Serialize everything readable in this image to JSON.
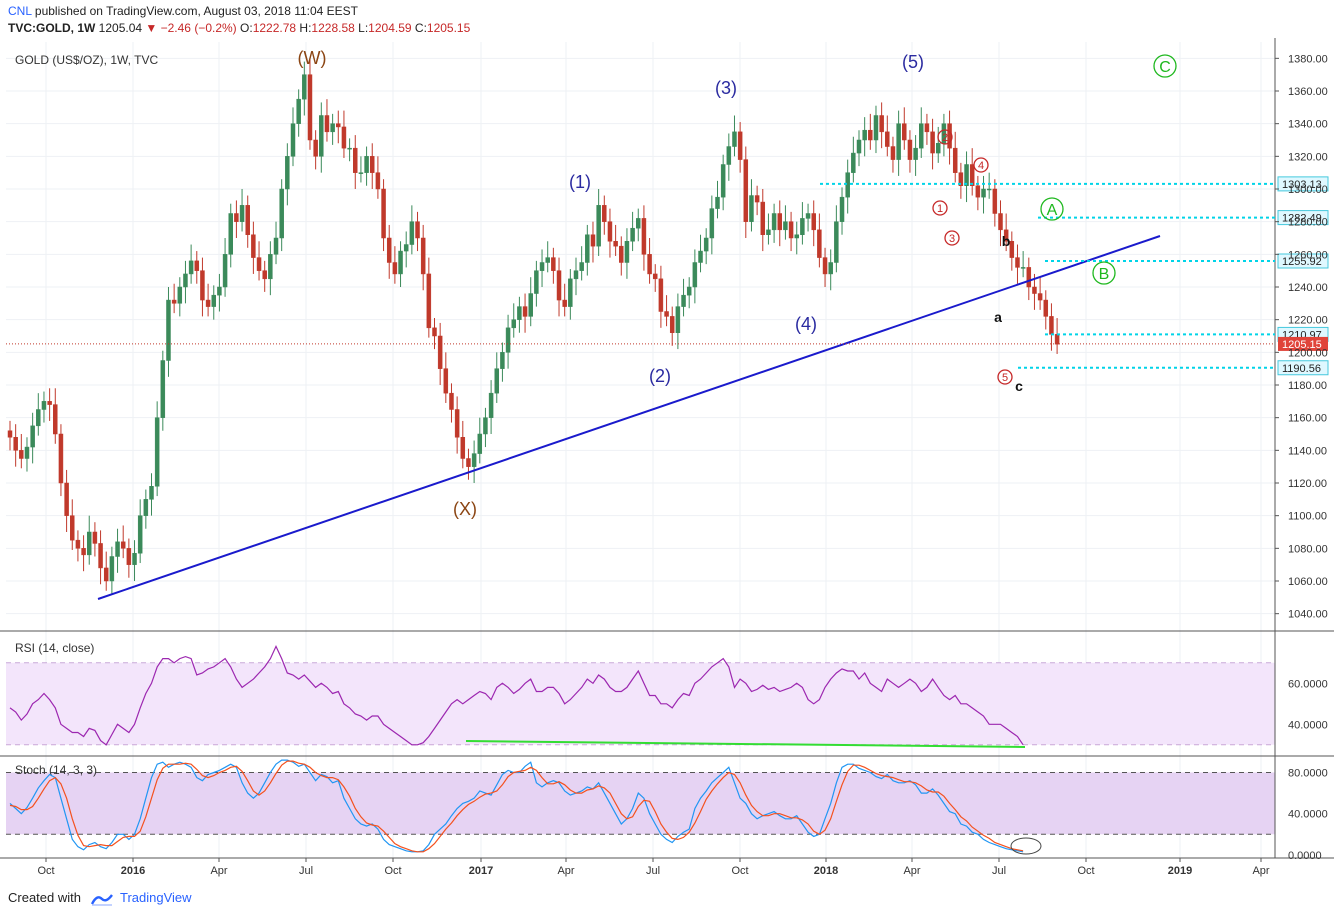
{
  "header": {
    "user": "CNL",
    "published_text": "published on TradingView.com, August 03, 2018 11:04 EEST",
    "symbol": "TVC:GOLD, 1W",
    "last": "1205.04",
    "change": "▼ −2.46 (−0.2%)",
    "ohlc": [
      {
        "label": "O:",
        "value": "1222.78"
      },
      {
        "label": "H:",
        "value": "1228.58"
      },
      {
        "label": "L:",
        "value": "1204.59"
      },
      {
        "label": "C:",
        "value": "1205.15"
      }
    ]
  },
  "footer": {
    "created_with": "Created with",
    "brand": "TradingView"
  },
  "colors": {
    "up_candle": "#3b8a5a",
    "down_candle": "#c0392b",
    "trendline": "#1a1acc",
    "wave_primary": "#2a2aa0",
    "wave_minor": "#c62828",
    "wave_intermediate": "#8b4513",
    "wave_abc_green": "#1fb81f",
    "level_line": "#00d4e8",
    "rsi_line": "#9c27b0",
    "stoch_k": "#2196f3",
    "stoch_d": "#f4511e"
  },
  "chart_data": [
    {
      "type": "candlestick",
      "title": "GOLD (US$/OZ), 1W, TVC",
      "ylim": [
        1030,
        1390
      ],
      "y_ticks": [
        1040,
        1060,
        1080,
        1100,
        1120,
        1140,
        1160,
        1180,
        1200,
        1220,
        1240,
        1260,
        1280,
        1300,
        1320,
        1340,
        1360,
        1380
      ],
      "x_ticks": [
        "Oct",
        "2016",
        "Apr",
        "Jul",
        "Oct",
        "2017",
        "Apr",
        "Jul",
        "Oct",
        "2018",
        "Apr",
        "Jul",
        "Oct",
        "2019",
        "Apr"
      ],
      "price_levels": [
        {
          "label": "1303.13",
          "value": 1303.13,
          "style": "level"
        },
        {
          "label": "1282.49",
          "value": 1282.49,
          "style": "level"
        },
        {
          "label": "1255.92",
          "value": 1255.92,
          "style": "level"
        },
        {
          "label": "1210.97",
          "value": 1210.97,
          "style": "level"
        },
        {
          "label": "1205.15",
          "value": 1205.15,
          "style": "last"
        },
        {
          "label": "1190.56",
          "value": 1190.56,
          "style": "level"
        }
      ],
      "weekly_closes": [
        1148,
        1140,
        1135,
        1142,
        1155,
        1165,
        1170,
        1168,
        1150,
        1120,
        1100,
        1085,
        1080,
        1076,
        1090,
        1083,
        1068,
        1060,
        1075,
        1084,
        1080,
        1070,
        1077,
        1100,
        1110,
        1118,
        1160,
        1195,
        1232,
        1230,
        1240,
        1248,
        1256,
        1250,
        1232,
        1228,
        1235,
        1240,
        1260,
        1285,
        1280,
        1290,
        1272,
        1258,
        1250,
        1245,
        1260,
        1270,
        1300,
        1320,
        1340,
        1355,
        1370,
        1330,
        1320,
        1345,
        1335,
        1340,
        1338,
        1325,
        1325,
        1310,
        1310,
        1320,
        1310,
        1300,
        1270,
        1255,
        1248,
        1262,
        1266,
        1280,
        1270,
        1248,
        1215,
        1210,
        1190,
        1175,
        1165,
        1148,
        1135,
        1130,
        1138,
        1150,
        1160,
        1175,
        1190,
        1200,
        1215,
        1220,
        1228,
        1222,
        1236,
        1250,
        1255,
        1258,
        1250,
        1232,
        1228,
        1245,
        1250,
        1255,
        1272,
        1265,
        1290,
        1280,
        1268,
        1265,
        1255,
        1268,
        1276,
        1282,
        1260,
        1248,
        1245,
        1225,
        1222,
        1212,
        1228,
        1235,
        1240,
        1255,
        1262,
        1270,
        1288,
        1295,
        1315,
        1326,
        1335,
        1318,
        1280,
        1296,
        1292,
        1272,
        1275,
        1285,
        1275,
        1280,
        1270,
        1272,
        1282,
        1285,
        1275,
        1258,
        1248,
        1255,
        1280,
        1295,
        1310,
        1322,
        1330,
        1336,
        1330,
        1345,
        1335,
        1326,
        1318,
        1340,
        1330,
        1318,
        1325,
        1340,
        1335,
        1322,
        1328,
        1340,
        1325,
        1310,
        1302,
        1315,
        1302,
        1295,
        1300,
        1300,
        1285,
        1275,
        1268,
        1258,
        1252,
        1252,
        1240,
        1236,
        1232,
        1222,
        1211,
        1205
      ],
      "annotations": [
        {
          "text": "(W)",
          "color": "wave_intermediate"
        },
        {
          "text": "(X)",
          "color": "wave_intermediate"
        },
        {
          "text": "(1)",
          "color": "wave_primary"
        },
        {
          "text": "(2)",
          "color": "wave_primary"
        },
        {
          "text": "(3)",
          "color": "wave_primary"
        },
        {
          "text": "(4)",
          "color": "wave_primary"
        },
        {
          "text": "(5)",
          "color": "wave_primary"
        },
        {
          "text": "1",
          "color": "wave_minor",
          "circled": true
        },
        {
          "text": "2",
          "color": "wave_minor",
          "circled": true
        },
        {
          "text": "3",
          "color": "wave_minor",
          "circled": true
        },
        {
          "text": "4",
          "color": "wave_minor",
          "circled": true
        },
        {
          "text": "5",
          "color": "wave_minor",
          "circled": true
        },
        {
          "text": "a",
          "color": "black"
        },
        {
          "text": "b",
          "color": "black"
        },
        {
          "text": "c",
          "color": "black"
        },
        {
          "text": "A",
          "color": "wave_abc_green",
          "circled": true
        },
        {
          "text": "B",
          "color": "wave_abc_green",
          "circled": true
        },
        {
          "text": "C",
          "color": "wave_abc_green",
          "circled": true
        }
      ]
    },
    {
      "type": "line",
      "title": "RSI (14, close)",
      "ylim": [
        25,
        85
      ],
      "y_ticks": [
        40,
        60
      ],
      "y_tick_labels": [
        "40.0000",
        "60.0000"
      ],
      "band": [
        30,
        70
      ],
      "series": [
        {
          "name": "RSI",
          "values": [
            48,
            46,
            42,
            45,
            50,
            52,
            55,
            52,
            48,
            40,
            38,
            36,
            36,
            34,
            38,
            37,
            32,
            30,
            35,
            40,
            38,
            36,
            40,
            48,
            55,
            60,
            68,
            72,
            72,
            70,
            72,
            73,
            72,
            64,
            65,
            67,
            68,
            70,
            72,
            68,
            62,
            58,
            60,
            62,
            65,
            68,
            72,
            78,
            72,
            65,
            64,
            62,
            64,
            61,
            58,
            60,
            58,
            55,
            56,
            50,
            48,
            45,
            44,
            42,
            44,
            44,
            40,
            38,
            36,
            34,
            32,
            30,
            30,
            31,
            34,
            38,
            42,
            46,
            50,
            52,
            50,
            52,
            54,
            56,
            55,
            52,
            58,
            60,
            58,
            55,
            57,
            60,
            62,
            56,
            56,
            58,
            58,
            55,
            50,
            52,
            55,
            58,
            62,
            60,
            64,
            62,
            58,
            56,
            56,
            58,
            62,
            66,
            60,
            54,
            54,
            50,
            50,
            48,
            52,
            55,
            54,
            60,
            62,
            65,
            68,
            70,
            72,
            68,
            58,
            62,
            60,
            56,
            57,
            59,
            57,
            58,
            56,
            57,
            58,
            60,
            58,
            52,
            50,
            52,
            58,
            62,
            65,
            67,
            66,
            66,
            62,
            65,
            60,
            58,
            56,
            62,
            60,
            58,
            60,
            62,
            60,
            56,
            58,
            62,
            58,
            54,
            52,
            54,
            50,
            50,
            48,
            46,
            44,
            40,
            40,
            40,
            38,
            36,
            34,
            30
          ]
        }
      ]
    },
    {
      "type": "line",
      "title": "Stoch (14, 3, 3)",
      "ylim": [
        -3,
        95
      ],
      "y_ticks": [
        0,
        40,
        80
      ],
      "y_tick_labels": [
        "0.0000",
        "40.0000",
        "80.0000"
      ],
      "band": [
        20,
        80
      ],
      "series": [
        {
          "name": "%K",
          "values": [
            50,
            45,
            40,
            46,
            55,
            65,
            72,
            78,
            75,
            55,
            35,
            15,
            8,
            5,
            10,
            12,
            8,
            6,
            12,
            20,
            20,
            15,
            20,
            35,
            55,
            75,
            88,
            90,
            85,
            88,
            90,
            88,
            85,
            75,
            72,
            78,
            80,
            82,
            85,
            88,
            85,
            70,
            60,
            55,
            60,
            70,
            80,
            88,
            92,
            92,
            90,
            86,
            88,
            80,
            72,
            78,
            76,
            70,
            72,
            55,
            45,
            35,
            30,
            28,
            30,
            25,
            15,
            10,
            8,
            6,
            4,
            3,
            3,
            4,
            10,
            20,
            25,
            30,
            38,
            45,
            50,
            52,
            55,
            62,
            60,
            58,
            68,
            78,
            82,
            80,
            80,
            86,
            90,
            70,
            66,
            70,
            72,
            70,
            62,
            58,
            60,
            62,
            66,
            64,
            70,
            60,
            50,
            40,
            30,
            35,
            45,
            60,
            55,
            40,
            30,
            20,
            15,
            12,
            18,
            22,
            25,
            45,
            55,
            62,
            70,
            75,
            80,
            85,
            70,
            55,
            50,
            40,
            35,
            38,
            40,
            42,
            38,
            35,
            35,
            38,
            30,
            22,
            18,
            20,
            35,
            50,
            70,
            85,
            88,
            88,
            84,
            82,
            80,
            76,
            74,
            78,
            72,
            70,
            70,
            72,
            68,
            60,
            60,
            64,
            58,
            50,
            42,
            40,
            30,
            28,
            22,
            20,
            15,
            12,
            10,
            8,
            6,
            5,
            4,
            3
          ]
        },
        {
          "name": "%D",
          "values": [
            48,
            47,
            44,
            44,
            47,
            55,
            64,
            72,
            75,
            69,
            55,
            35,
            19,
            9,
            8,
            9,
            10,
            9,
            9,
            13,
            17,
            18,
            18,
            23,
            37,
            55,
            73,
            84,
            88,
            88,
            88,
            89,
            88,
            83,
            77,
            75,
            77,
            80,
            82,
            85,
            86,
            81,
            72,
            62,
            58,
            62,
            70,
            79,
            87,
            91,
            91,
            89,
            88,
            85,
            80,
            77,
            75,
            75,
            73,
            66,
            57,
            45,
            37,
            31,
            29,
            28,
            23,
            17,
            11,
            8,
            6,
            4,
            3,
            3,
            6,
            11,
            18,
            25,
            31,
            38,
            44,
            49,
            52,
            56,
            59,
            60,
            62,
            68,
            76,
            80,
            81,
            82,
            85,
            82,
            75,
            69,
            69,
            71,
            68,
            63,
            60,
            60,
            63,
            64,
            67,
            65,
            60,
            50,
            40,
            35,
            37,
            47,
            53,
            52,
            42,
            30,
            22,
            16,
            15,
            17,
            22,
            31,
            42,
            54,
            62,
            69,
            75,
            80,
            78,
            70,
            58,
            48,
            42,
            38,
            38,
            40,
            40,
            38,
            36,
            36,
            34,
            30,
            23,
            20,
            24,
            35,
            52,
            68,
            81,
            87,
            87,
            85,
            82,
            79,
            77,
            76,
            75,
            73,
            71,
            71,
            70,
            67,
            63,
            61,
            61,
            57,
            50,
            44,
            37,
            33,
            27,
            23,
            19,
            16,
            12,
            10,
            8,
            6,
            5,
            4
          ]
        }
      ]
    }
  ]
}
